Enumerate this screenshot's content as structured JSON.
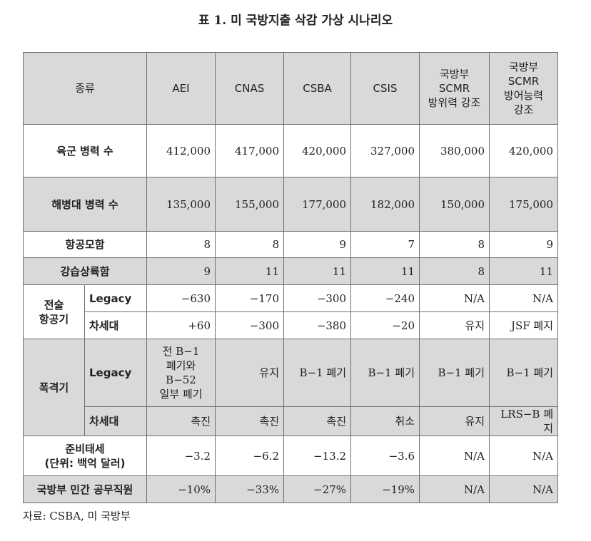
{
  "title": "표 1. 미 국방지출 삭감 가상 시나리오",
  "header": {
    "category": "종류",
    "columns": [
      "AEI",
      "CNAS",
      "CSBA",
      "CSIS",
      "국방부\nSCMR\n방위력 강조",
      "국방부\nSCMR\n방어능력\n강조"
    ]
  },
  "rows": {
    "army": {
      "label": "육군 병력 수",
      "values": [
        "412,000",
        "417,000",
        "420,000",
        "327,000",
        "380,000",
        "420,000"
      ]
    },
    "marines": {
      "label": "해병대 병력 수",
      "values": [
        "135,000",
        "155,000",
        "177,000",
        "182,000",
        "150,000",
        "175,000"
      ]
    },
    "carriers": {
      "label": "항공모함",
      "values": [
        "8",
        "8",
        "9",
        "7",
        "8",
        "9"
      ]
    },
    "amphib": {
      "label": "강습상륙함",
      "values": [
        "9",
        "11",
        "11",
        "11",
        "8",
        "11"
      ]
    },
    "tactical": {
      "label": "전술\n항공기",
      "legacy": {
        "label": "Legacy",
        "values": [
          "−630",
          "−170",
          "−300",
          "−240",
          "N/A",
          "N/A"
        ]
      },
      "nextgen": {
        "label": "차세대",
        "values": [
          "+60",
          "−300",
          "−380",
          "−20",
          "유지",
          "JSF 폐지"
        ]
      }
    },
    "bomber": {
      "label": "폭격기",
      "legacy": {
        "label": "Legacy",
        "values": [
          "전 B−1\n폐기와\nB−52\n일부 폐기",
          "유지",
          "B−1 폐기",
          "B−1 폐기",
          "B−1 폐기",
          "B−1 폐기"
        ]
      },
      "nextgen": {
        "label": "차세대",
        "values": [
          "촉진",
          "촉진",
          "촉진",
          "취소",
          "유지",
          "LRS−B 폐지"
        ]
      }
    },
    "readiness": {
      "label": "준비태세\n(단위: 백억 달러)",
      "values": [
        "−3.2",
        "−6.2",
        "−13.2",
        "−3.6",
        "N/A",
        "N/A"
      ]
    },
    "civilian": {
      "label": "국방부 민간 공무직원",
      "values": [
        "−10%",
        "−33%",
        "−27%",
        "−19%",
        "N/A",
        "N/A"
      ]
    }
  },
  "source": "자료: CSBA, 미 국방부"
}
